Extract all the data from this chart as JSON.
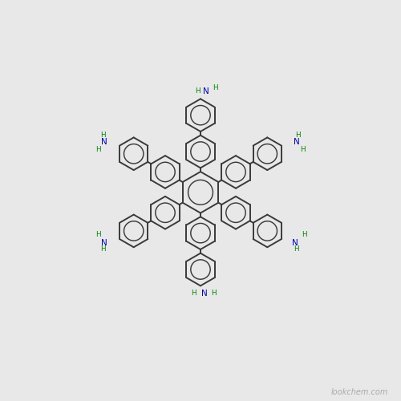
{
  "background_color": "#e8e8e8",
  "bond_color": "#3a3a3a",
  "nh2_color": "#0000cc",
  "h_color": "#008800",
  "bond_width": 1.4,
  "figsize": [
    5.0,
    5.0
  ],
  "dpi": 100,
  "core_r": 0.38,
  "prox_r": 0.3,
  "dist_r": 0.3,
  "prox_dist": 0.75,
  "dist_dist": 1.42,
  "arm_dirs": [
    90,
    150,
    210,
    270,
    330,
    30
  ],
  "watermark": "lookchem.com",
  "watermark_color": "#aaaaaa",
  "watermark_fontsize": 7,
  "xlim": [
    -3.5,
    3.5
  ],
  "ylim": [
    -3.8,
    3.5
  ]
}
